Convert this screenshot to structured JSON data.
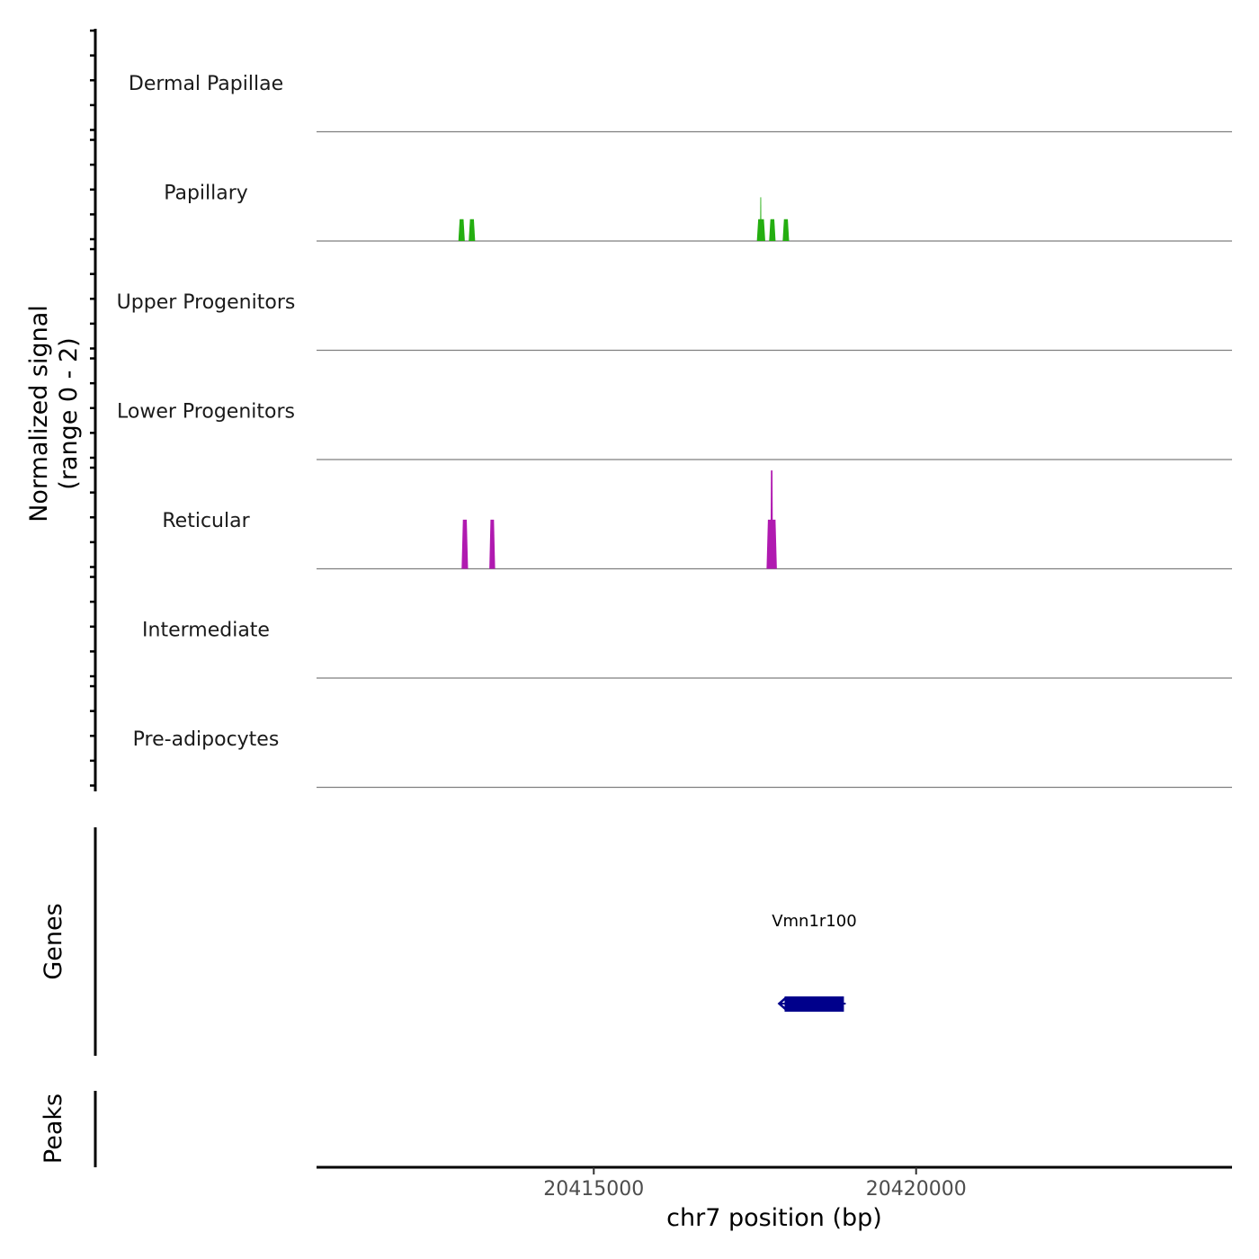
{
  "chart_data": {
    "type": "area",
    "title": "",
    "xlabel": "chr7 position (bp)",
    "ylabel_lines": [
      "Normalized signal",
      "(range 0 - 2)"
    ],
    "xlim": [
      20410700,
      20424900
    ],
    "x_ticks": [
      20415000,
      20420000
    ],
    "x_tick_labels": [
      "20415000",
      "20420000"
    ],
    "ylim": [
      0,
      2
    ],
    "tracks": [
      {
        "name": "Dermal Papillae",
        "color": "#2ab00a",
        "peaks": []
      },
      {
        "name": "Papillary",
        "color": "#24ae10",
        "peaks": [
          {
            "start": 20412900,
            "end": 20413000,
            "value": 0.4
          },
          {
            "start": 20413060,
            "end": 20413160,
            "value": 0.4
          },
          {
            "start": 20417530,
            "end": 20417660,
            "value": 0.4
          },
          {
            "start": 20417580,
            "end": 20417600,
            "value": 0.8
          },
          {
            "start": 20417720,
            "end": 20417820,
            "value": 0.4
          },
          {
            "start": 20417930,
            "end": 20418030,
            "value": 0.4
          }
        ]
      },
      {
        "name": "Upper Progenitors",
        "color": "#2ab00a",
        "peaks": []
      },
      {
        "name": "Lower Progenitors",
        "color": "#2ab00a",
        "peaks": []
      },
      {
        "name": "Reticular",
        "color": "#b01ab0",
        "peaks": [
          {
            "start": 20412950,
            "end": 20413050,
            "value": 0.9
          },
          {
            "start": 20413380,
            "end": 20413470,
            "value": 0.9
          },
          {
            "start": 20417680,
            "end": 20417840,
            "value": 0.9
          },
          {
            "start": 20417740,
            "end": 20417780,
            "value": 1.8
          }
        ]
      },
      {
        "name": "Intermediate",
        "color": "#2ab00a",
        "peaks": []
      },
      {
        "name": "Pre-adipocytes",
        "color": "#2ab00a",
        "peaks": []
      }
    ],
    "genes_label": "Genes",
    "genes": [
      {
        "name": "Vmn1r100",
        "start": 20417960,
        "end": 20418880,
        "strand": "-",
        "color": "#00008b"
      }
    ],
    "peaks_label": "Peaks",
    "peaks_regions": []
  }
}
